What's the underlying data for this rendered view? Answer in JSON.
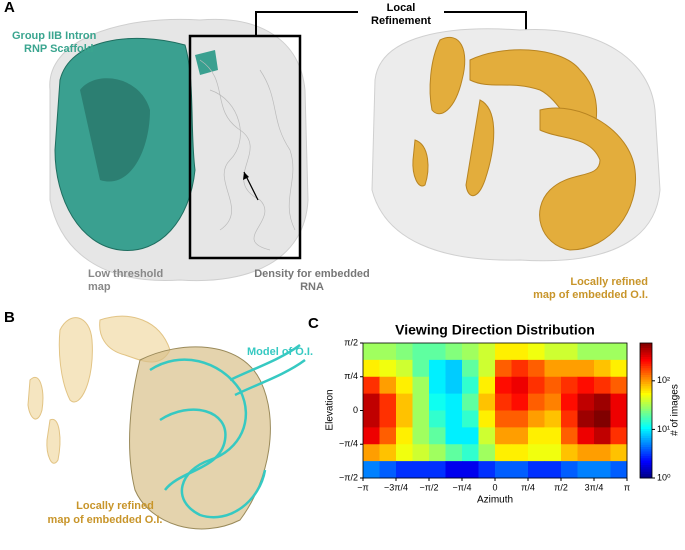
{
  "panel_a": {
    "label": "A",
    "local_refinement": [
      "Local",
      "Refinement"
    ],
    "scaffold": [
      "Group IIB Intron",
      "RNP Scaffold"
    ],
    "low_threshold": [
      "Low threshold",
      "map"
    ],
    "embedded_rna": [
      "Density for embedded",
      "RNA"
    ],
    "refined": [
      "Locally refined",
      "map of embedded O.I."
    ]
  },
  "panel_b": {
    "label": "B",
    "model": "Model of O.I.",
    "refined": [
      "Locally refined",
      "map of embedded O.I."
    ]
  },
  "panel_c": {
    "label": "C"
  },
  "chart_data": {
    "type": "heatmap",
    "title": "Viewing Direction Distribution",
    "xlabel": "Azimuth",
    "ylabel": "Elevation",
    "xlim": [
      -3.14159,
      3.14159
    ],
    "ylim": [
      -1.5708,
      1.5708
    ],
    "xticks": [
      {
        "value": -3.14159,
        "label": "−π"
      },
      {
        "value": -2.35619,
        "label": "−3π/4"
      },
      {
        "value": -1.5708,
        "label": "−π/2"
      },
      {
        "value": -0.7854,
        "label": "−π/4"
      },
      0,
      {
        "value": 0.7854,
        "label": "π/4"
      },
      {
        "value": 1.5708,
        "label": "π/2"
      },
      {
        "value": 2.35619,
        "label": "3π/4"
      },
      {
        "value": 3.14159,
        "label": "π"
      }
    ],
    "yticks": [
      {
        "value": -1.5708,
        "label": "−π/2"
      },
      {
        "value": -0.7854,
        "label": "−π/4"
      },
      0,
      {
        "value": 0.7854,
        "label": "π/4"
      },
      {
        "value": 1.5708,
        "label": "π/2"
      }
    ],
    "values": [
      [
        30,
        30,
        25,
        20,
        20,
        25,
        30,
        40,
        60,
        60,
        50,
        40,
        40,
        30,
        30,
        30
      ],
      [
        60,
        50,
        40,
        20,
        10,
        8,
        20,
        40,
        150,
        200,
        150,
        100,
        100,
        100,
        80,
        60
      ],
      [
        200,
        100,
        60,
        30,
        10,
        8,
        15,
        60,
        250,
        300,
        200,
        150,
        200,
        250,
        200,
        150
      ],
      [
        400,
        200,
        80,
        30,
        12,
        10,
        20,
        80,
        200,
        250,
        150,
        120,
        250,
        400,
        500,
        300
      ],
      [
        400,
        200,
        80,
        30,
        15,
        10,
        15,
        60,
        150,
        150,
        100,
        80,
        200,
        500,
        600,
        300
      ],
      [
        300,
        150,
        60,
        30,
        20,
        10,
        10,
        40,
        100,
        100,
        60,
        60,
        150,
        300,
        400,
        200
      ],
      [
        100,
        80,
        50,
        40,
        30,
        20,
        15,
        30,
        60,
        60,
        50,
        50,
        80,
        100,
        100,
        80
      ],
      [
        5,
        4,
        3,
        3,
        3,
        2,
        2,
        3,
        4,
        4,
        3,
        3,
        4,
        5,
        5,
        4
      ]
    ],
    "colorbar_label": "# of images",
    "colorbar_scale": "log",
    "colormap": "jet",
    "clim": [
      1,
      600
    ],
    "cticks": [
      {
        "value": 1,
        "label": "10⁰"
      },
      {
        "value": 10,
        "label": "10¹"
      },
      {
        "value": 100,
        "label": "10²"
      }
    ]
  }
}
